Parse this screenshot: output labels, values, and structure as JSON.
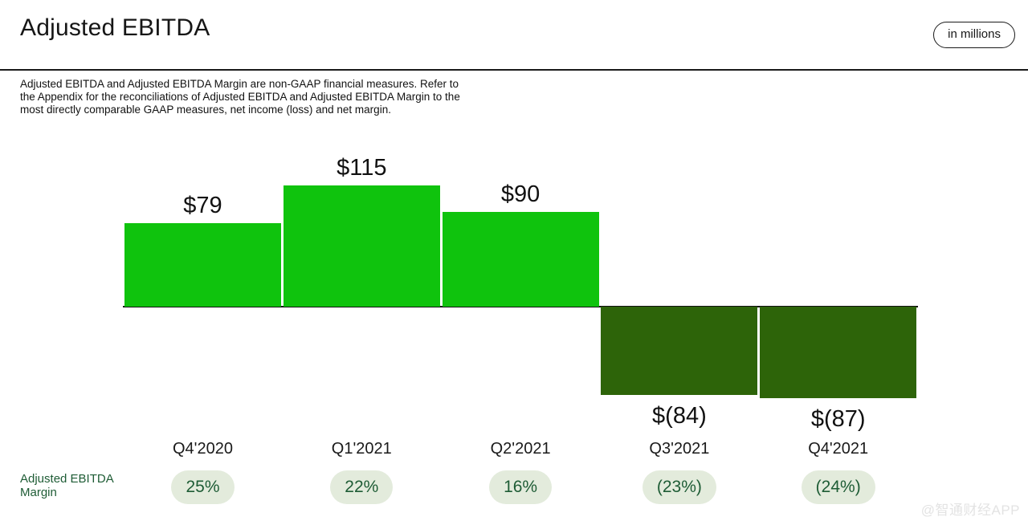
{
  "header": {
    "title": "Adjusted EBITDA",
    "unit_badge": "in millions"
  },
  "disclaimer": "Adjusted EBITDA and Adjusted EBITDA Margin are non-GAAP financial measures. Refer to the Appendix for the reconciliations of Adjusted EBITDA and Adjusted EBITDA Margin to the most directly comparable GAAP measures, net income (loss) and net margin.",
  "chart_data": {
    "type": "bar",
    "title": "Adjusted EBITDA",
    "unit": "in millions",
    "categories": [
      "Q4'2020",
      "Q1'2021",
      "Q2'2021",
      "Q3'2021",
      "Q4'2021"
    ],
    "values": [
      79,
      115,
      90,
      -84,
      -87
    ],
    "value_labels": [
      "$79",
      "$115",
      "$90",
      "$(84)",
      "$(87)"
    ],
    "margin_series": {
      "name": "Adjusted EBITDA Margin",
      "values_pct": [
        25,
        22,
        16,
        -23,
        -24
      ],
      "labels": [
        "25%",
        "22%",
        "16%",
        "(23%)",
        "(24%)"
      ]
    },
    "colors": {
      "positive_bar": "#0fc30d",
      "negative_bar": "#2d6409",
      "margin_pill_bg": "#e3ebdc",
      "margin_text": "#1e5c35",
      "axis": "#111111"
    },
    "baseline": 0,
    "grid": false,
    "legend": "none",
    "ylim": [
      -120,
      130
    ]
  },
  "margin_row_label": "Adjusted EBITDA Margin",
  "watermark": "@智通财经APP"
}
